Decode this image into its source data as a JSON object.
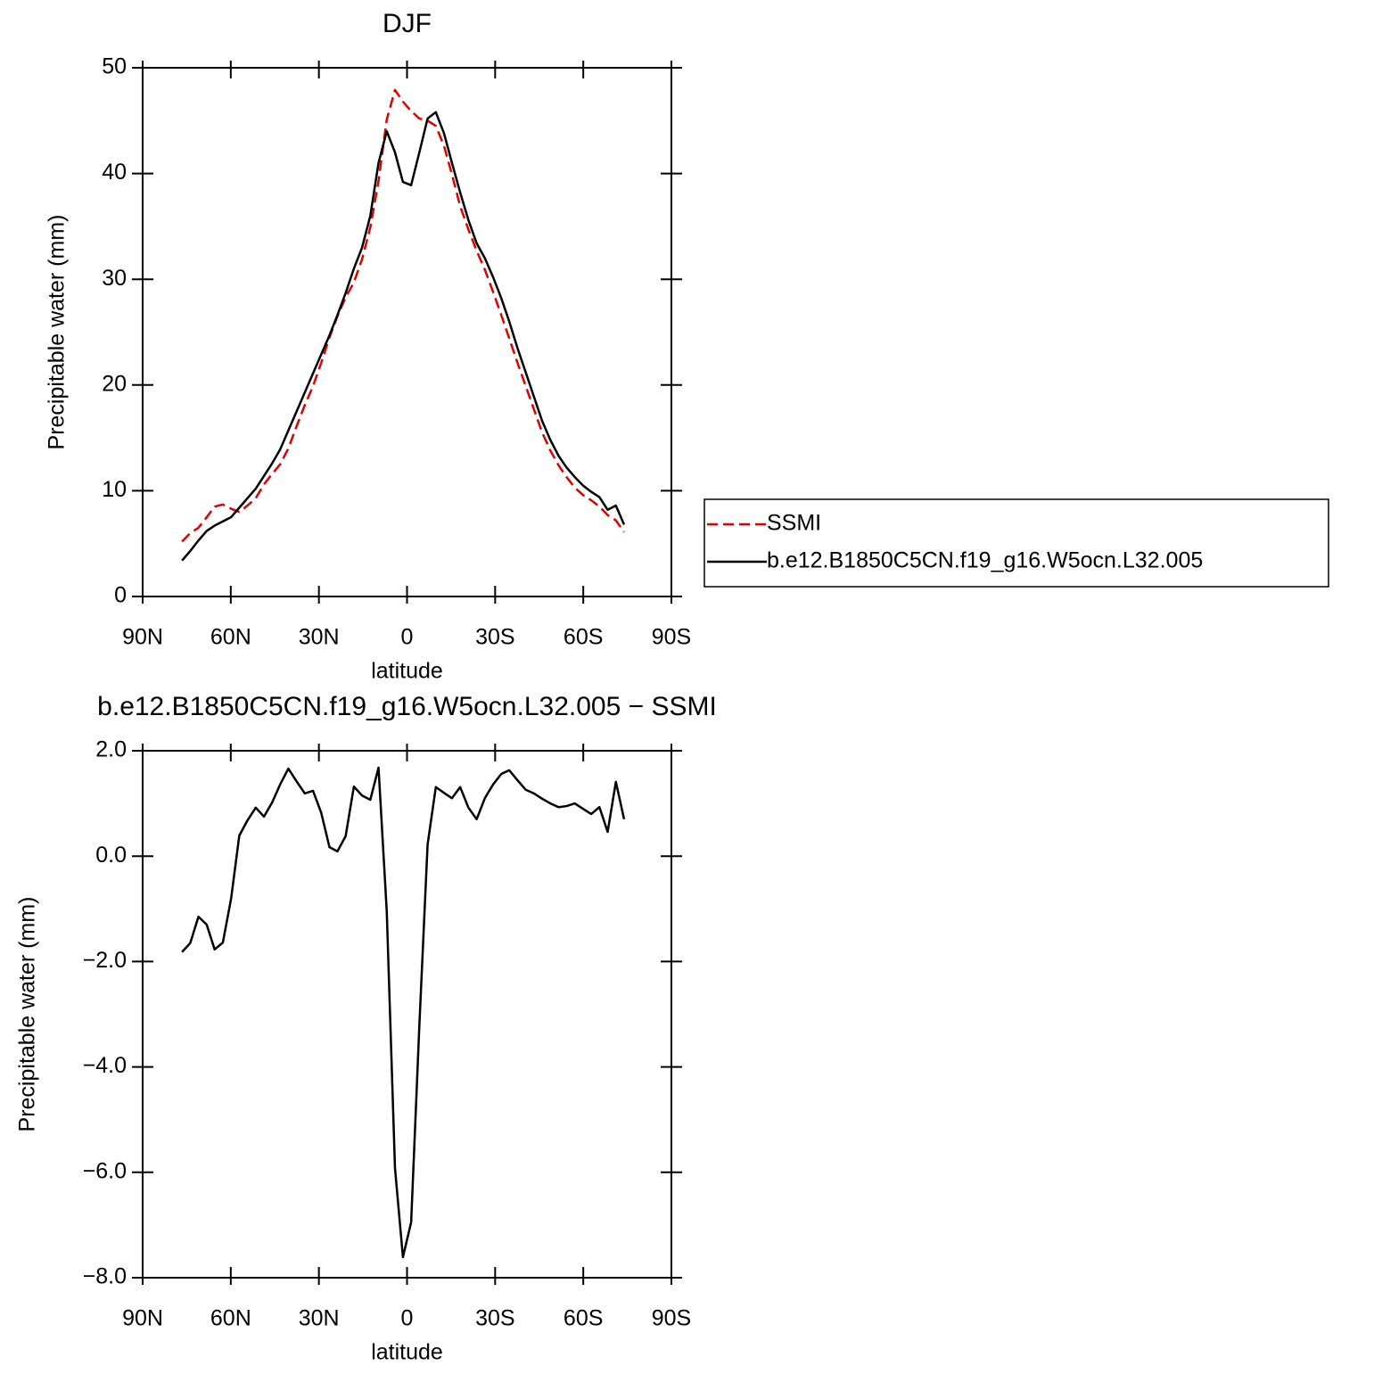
{
  "chart_data": [
    {
      "type": "line",
      "title": "DJF",
      "xlabel": "latitude",
      "ylabel": "Precipitable water (mm)",
      "x": [
        76.6,
        73.8,
        71.0,
        68.2,
        65.5,
        62.7,
        59.9,
        57.1,
        54.3,
        51.5,
        48.7,
        45.9,
        43.2,
        40.4,
        37.6,
        34.8,
        32.0,
        29.2,
        26.4,
        23.7,
        20.9,
        18.1,
        15.3,
        12.5,
        9.7,
        6.9,
        4.1,
        1.4,
        -1.4,
        -4.2,
        -7.0,
        -9.8,
        -12.6,
        -15.3,
        -18.1,
        -20.9,
        -23.7,
        -26.5,
        -29.3,
        -32.1,
        -34.8,
        -37.6,
        -40.4,
        -43.2,
        -46.0,
        -48.8,
        -51.6,
        -54.3,
        -57.1,
        -59.9,
        -62.7,
        -65.5,
        -68.3,
        -71.1,
        -73.9
      ],
      "series": [
        {
          "name": "SSMI",
          "color": "#e00000",
          "line_style": "dashed",
          "values": [
            5.2,
            6.0,
            6.5,
            7.5,
            8.5,
            8.7,
            8.3,
            8.0,
            8.6,
            9.3,
            10.6,
            11.6,
            12.5,
            14.0,
            16.1,
            18.1,
            19.9,
            22.1,
            24.5,
            26.5,
            28.3,
            29.7,
            31.9,
            34.9,
            39.3,
            45.1,
            47.9,
            46.8,
            45.9,
            45.2,
            45.0,
            44.5,
            42.6,
            39.9,
            36.9,
            34.7,
            32.7,
            30.9,
            28.8,
            26.6,
            24.4,
            22.1,
            19.9,
            17.7,
            15.5,
            13.8,
            12.4,
            11.3,
            10.3,
            9.6,
            9.1,
            8.5,
            7.7,
            7.2,
            6.1
          ]
        },
        {
          "name": "b.e12.B1850C5CN.f19_g16.W5ocn.L32.005",
          "color": "#000000",
          "line_style": "solid",
          "values": [
            3.4,
            4.3,
            5.3,
            6.2,
            6.7,
            7.1,
            7.5,
            8.4,
            9.3,
            10.2,
            11.4,
            12.6,
            13.9,
            15.7,
            17.5,
            19.3,
            21.1,
            22.9,
            24.7,
            26.6,
            28.7,
            31.0,
            33.0,
            36.0,
            41.0,
            44.0,
            42.0,
            39.2,
            38.9,
            42.0,
            45.2,
            45.8,
            43.8,
            41.0,
            38.2,
            35.6,
            33.4,
            32.0,
            30.2,
            28.2,
            26.0,
            23.5,
            21.2,
            18.9,
            16.6,
            14.8,
            13.3,
            12.2,
            11.3,
            10.5,
            9.9,
            9.4,
            8.2,
            8.6,
            6.8
          ]
        }
      ],
      "xlim": [
        90,
        -90
      ],
      "xticks": [
        {
          "value": 90,
          "label": "90N"
        },
        {
          "value": 60,
          "label": "60N"
        },
        {
          "value": 30,
          "label": "30N"
        },
        0,
        {
          "value": -30,
          "label": "30S"
        },
        {
          "value": -60,
          "label": "60S"
        },
        {
          "value": -90,
          "label": "90S"
        }
      ],
      "ylim": [
        0,
        50
      ],
      "yticks": [
        0,
        10,
        20,
        30,
        40,
        50
      ],
      "legend": "right"
    },
    {
      "type": "line",
      "title": "b.e12.B1850C5CN.f19_g16.W5ocn.L32.005 − SSMI",
      "xlabel": "latitude",
      "ylabel": "Precipitable water (mm)",
      "x": [
        76.6,
        73.8,
        71.0,
        68.2,
        65.5,
        62.7,
        59.9,
        57.1,
        54.3,
        51.5,
        48.7,
        45.9,
        43.2,
        40.4,
        37.6,
        34.8,
        32.0,
        29.2,
        26.4,
        23.7,
        20.9,
        18.1,
        15.3,
        12.5,
        9.7,
        6.9,
        4.1,
        1.4,
        -1.4,
        -4.2,
        -7.0,
        -9.8,
        -12.6,
        -15.3,
        -18.1,
        -20.9,
        -23.7,
        -26.5,
        -29.3,
        -32.1,
        -34.8,
        -37.6,
        -40.4,
        -43.2,
        -46.0,
        -48.8,
        -51.6,
        -54.3,
        -57.1,
        -59.9,
        -62.7,
        -65.5,
        -68.3,
        -71.1,
        -73.9
      ],
      "values": [
        -1.82,
        -1.65,
        -1.15,
        -1.3,
        -1.77,
        -1.64,
        -0.81,
        0.39,
        0.68,
        0.92,
        0.75,
        1.02,
        1.36,
        1.66,
        1.42,
        1.19,
        1.24,
        0.82,
        0.17,
        0.09,
        0.38,
        1.32,
        1.15,
        1.07,
        1.68,
        -1.05,
        -5.92,
        -7.61,
        -6.95,
        -3.21,
        0.22,
        1.31,
        1.2,
        1.1,
        1.31,
        0.92,
        0.7,
        1.1,
        1.36,
        1.56,
        1.63,
        1.44,
        1.26,
        1.19,
        1.09,
        1.0,
        0.93,
        0.95,
        1.0,
        0.9,
        0.8,
        0.93,
        0.46,
        1.41,
        0.7
      ],
      "color": "#000000",
      "xlim": [
        90,
        -90
      ],
      "xticks": [
        {
          "value": 90,
          "label": "90N"
        },
        {
          "value": 60,
          "label": "60N"
        },
        {
          "value": 30,
          "label": "30N"
        },
        0,
        {
          "value": -30,
          "label": "30S"
        },
        {
          "value": -60,
          "label": "60S"
        },
        {
          "value": -90,
          "label": "90S"
        }
      ],
      "ylim": [
        -8,
        2
      ],
      "yticks": [
        {
          "value": -8,
          "label": "−8.0"
        },
        {
          "value": -6,
          "label": "−6.0"
        },
        {
          "value": -4,
          "label": "−4.0"
        },
        {
          "value": -2,
          "label": "−2.0"
        },
        {
          "value": 0,
          "label": "0.0"
        },
        {
          "value": 2,
          "label": "2.0"
        }
      ]
    }
  ]
}
